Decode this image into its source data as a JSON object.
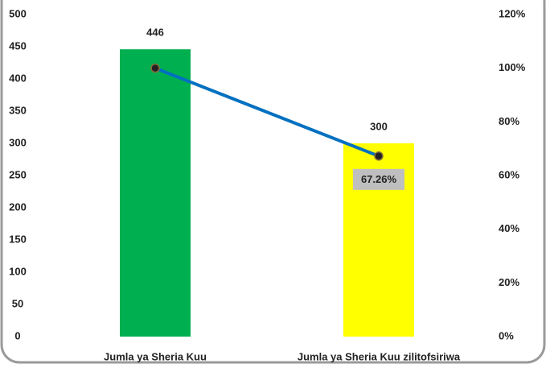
{
  "chart_data": {
    "type": "bar",
    "categories": [
      "Jumla ya Sheria Kuu",
      "Jumla ya Sheria Kuu zilitofsiriwa"
    ],
    "values": [
      446,
      300
    ],
    "colors": [
      "#00b050",
      "#ffff00"
    ],
    "ylim": [
      0,
      500
    ],
    "yticks": [
      0,
      50,
      100,
      150,
      200,
      250,
      300,
      350,
      400,
      450,
      500
    ],
    "y2lim": [
      0,
      120
    ],
    "y2ticks": [
      {
        "value": 0,
        "label": "0%"
      },
      {
        "value": 20,
        "label": "20%"
      },
      {
        "value": 40,
        "label": "40%"
      },
      {
        "value": 60,
        "label": "60%"
      },
      {
        "value": 80,
        "label": "80%"
      },
      {
        "value": 100,
        "label": "100%"
      },
      {
        "value": 120,
        "label": "120%"
      }
    ],
    "line": {
      "type": "line",
      "axis": "y2",
      "color": "#0070c0",
      "values": [
        100,
        67.26
      ],
      "value_labels": [
        null,
        "67.26%"
      ]
    }
  }
}
